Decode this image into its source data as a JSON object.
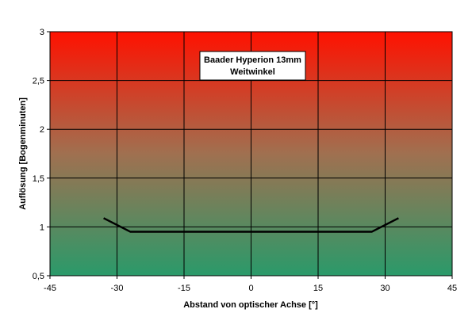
{
  "chart_data": {
    "type": "line",
    "title": "Baader Hyperion 13mm\nWeitwinkel",
    "title_lines": [
      "Baader Hyperion 13mm",
      "Weitwinkel"
    ],
    "xlabel": "Abstand von optischer Achse [°]",
    "ylabel": "Auflösung [Bogenminuten]",
    "xlim": [
      -45,
      45
    ],
    "ylim": [
      0.5,
      3
    ],
    "x_ticks": [
      -45,
      -30,
      -15,
      0,
      15,
      30,
      45
    ],
    "x_tick_labels": [
      "-45",
      "-30",
      "-15",
      "0",
      "15",
      "30",
      "45"
    ],
    "y_ticks": [
      0.5,
      1,
      1.5,
      2,
      2.5,
      3
    ],
    "y_tick_labels": [
      "0,5",
      "1",
      "1,5",
      "2",
      "2,5",
      "3"
    ],
    "grid": true,
    "legend": "none",
    "background_gradient": {
      "top": "#ff1100",
      "bottom": "#2a9a6a"
    },
    "series": [
      {
        "color": "#000000",
        "x": [
          -33,
          -27,
          27,
          33
        ],
        "y": [
          1.09,
          0.95,
          0.95,
          1.09
        ]
      }
    ]
  }
}
